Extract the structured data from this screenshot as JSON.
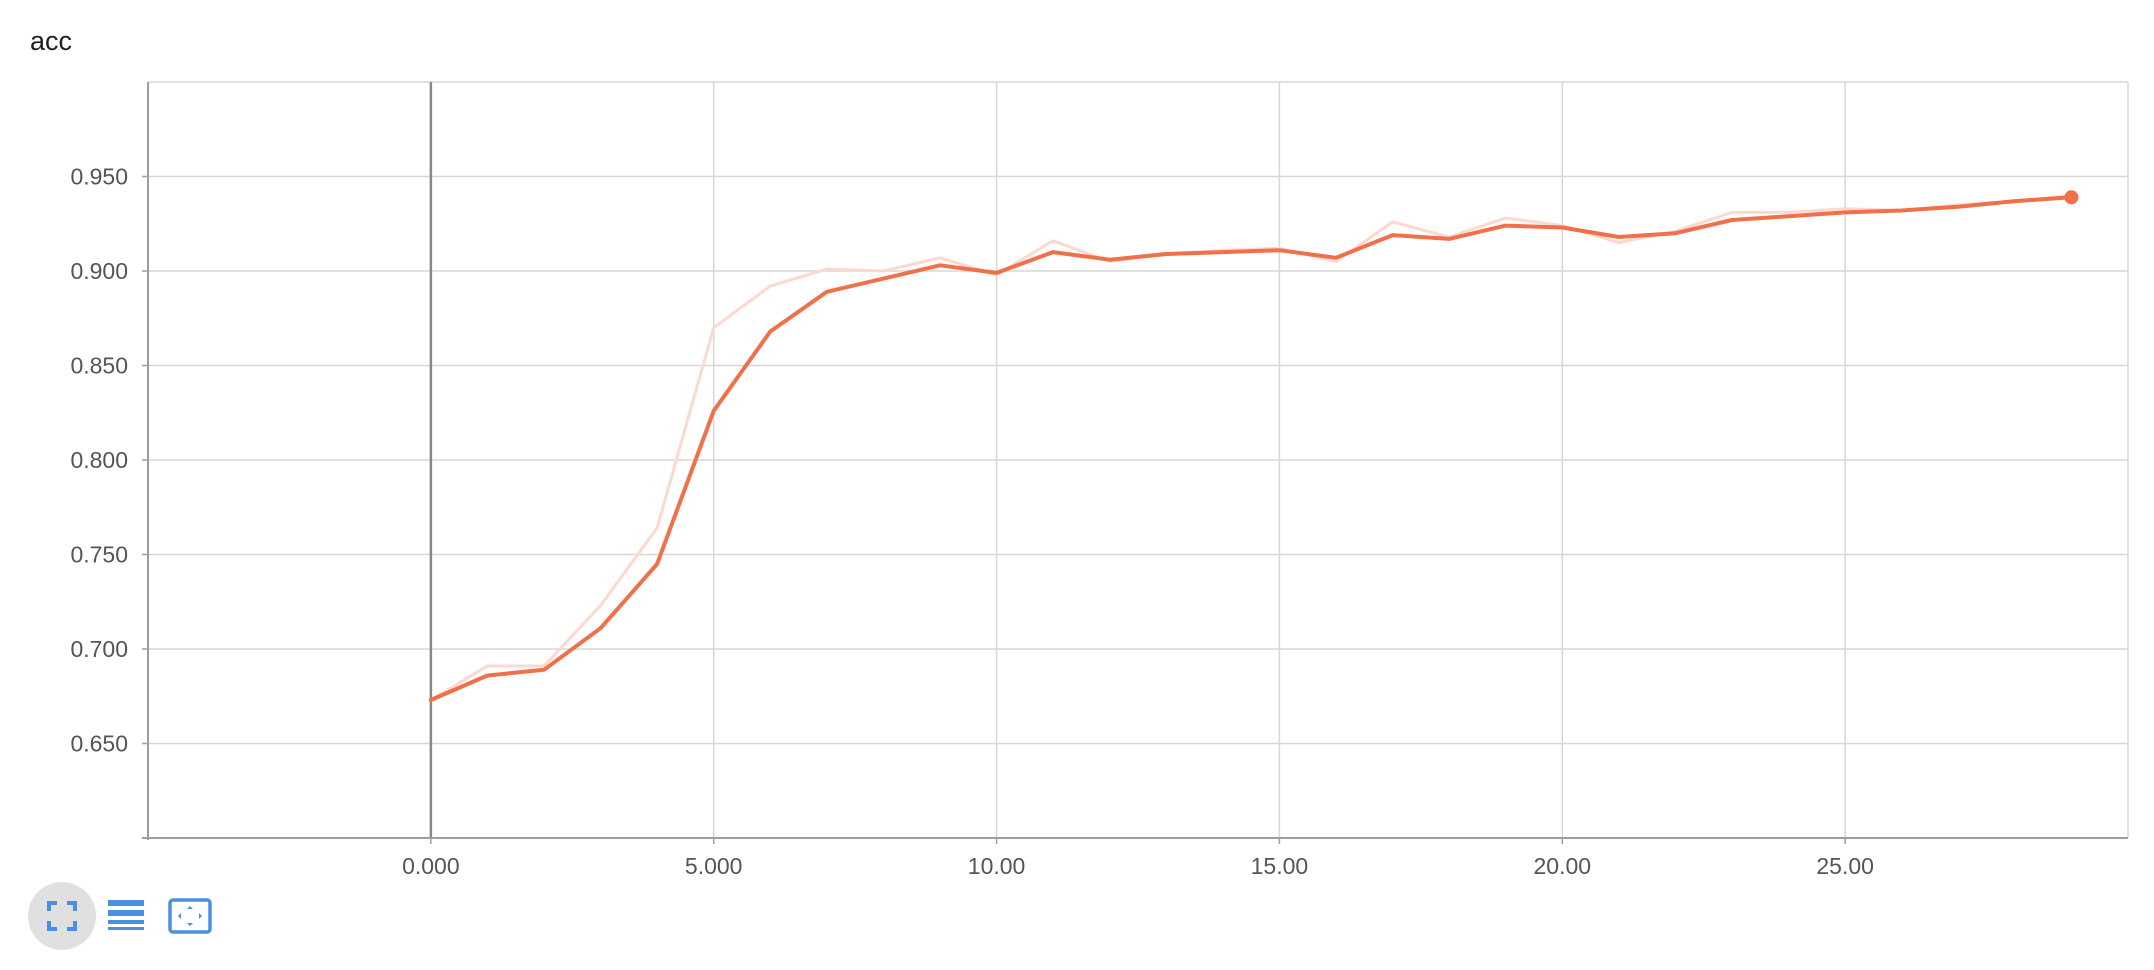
{
  "title": "acc",
  "colors": {
    "line": "#f0704a",
    "line_raw": "#fcd9cf",
    "grid": "#d7d7d7",
    "axis": "#9e9e9e",
    "zero_line": "#888888",
    "icon": "#4a90e2"
  },
  "toolbar": {
    "items": [
      {
        "name": "fit-domain-icon",
        "active": true
      },
      {
        "name": "log-scale-icon",
        "active": false
      },
      {
        "name": "expand-chart-icon",
        "active": false
      }
    ]
  },
  "chart_data": {
    "type": "line",
    "title": "acc",
    "xlabel": "",
    "ylabel": "",
    "xlim": [
      -5.0,
      30.0
    ],
    "ylim": [
      0.6,
      1.0
    ],
    "xticks": [
      0,
      5,
      10,
      15,
      20,
      25
    ],
    "xtick_labels": [
      "0.000",
      "5.000",
      "10.00",
      "15.00",
      "20.00",
      "25.00"
    ],
    "yticks": [
      0.65,
      0.7,
      0.75,
      0.8,
      0.85,
      0.9,
      0.95
    ],
    "ytick_labels": [
      "0.650",
      "0.700",
      "0.750",
      "0.800",
      "0.850",
      "0.900",
      "0.950"
    ],
    "grid": true,
    "series": [
      {
        "role": "raw",
        "x": [
          0,
          1,
          2,
          3,
          4,
          5,
          6,
          7,
          8,
          9,
          10,
          11,
          12,
          13,
          14,
          15,
          16,
          17,
          18,
          19,
          20,
          21,
          22,
          23,
          24,
          25,
          26,
          27,
          28,
          29
        ],
        "y": [
          0.673,
          0.691,
          0.691,
          0.723,
          0.764,
          0.87,
          0.892,
          0.901,
          0.9,
          0.907,
          0.898,
          0.916,
          0.905,
          0.909,
          0.911,
          0.912,
          0.905,
          0.926,
          0.918,
          0.928,
          0.924,
          0.915,
          0.921,
          0.931,
          0.931,
          0.933,
          0.932,
          0.935,
          0.937,
          0.94
        ]
      },
      {
        "role": "smoothed",
        "x": [
          0,
          1,
          2,
          3,
          4,
          5,
          6,
          7,
          8,
          9,
          10,
          11,
          12,
          13,
          14,
          15,
          16,
          17,
          18,
          19,
          20,
          21,
          22,
          23,
          24,
          25,
          26,
          27,
          28,
          29
        ],
        "y": [
          0.673,
          0.686,
          0.689,
          0.711,
          0.745,
          0.826,
          0.868,
          0.889,
          0.896,
          0.903,
          0.899,
          0.91,
          0.906,
          0.909,
          0.91,
          0.911,
          0.907,
          0.919,
          0.917,
          0.924,
          0.923,
          0.918,
          0.92,
          0.927,
          0.929,
          0.931,
          0.932,
          0.934,
          0.937,
          0.939
        ]
      }
    ]
  }
}
